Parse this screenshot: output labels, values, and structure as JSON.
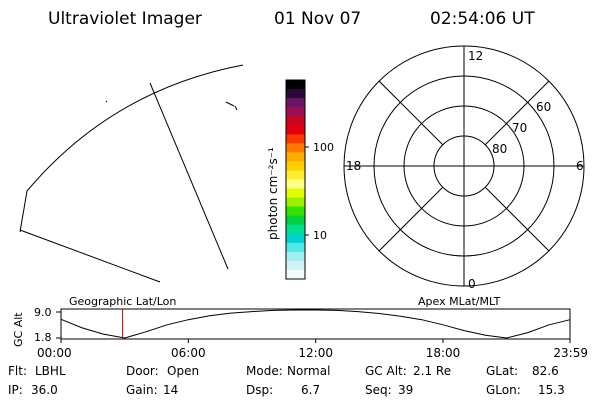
{
  "header": {
    "title": "Ultraviolet Imager",
    "date": "01 Nov 07",
    "time": "02:54:06 UT"
  },
  "colorbar": {
    "label": "photon cm⁻²s⁻¹",
    "scale": "log",
    "ticks": [
      "100",
      "10"
    ],
    "colors": [
      "#000000",
      "#2b0a3a",
      "#6a1568",
      "#9a1050",
      "#c80820",
      "#e40010",
      "#f83800",
      "#ff7800",
      "#ffac00",
      "#ffd000",
      "#ffee33",
      "#ffff88",
      "#ddff00",
      "#99f000",
      "#33e000",
      "#00d040",
      "#00e090",
      "#00d0d0",
      "#50e8e8",
      "#a0f0f0",
      "#d0f4f4",
      "#f4fafa"
    ]
  },
  "polar": {
    "mlt_labels": {
      "top": "12",
      "left": "18",
      "right": "6",
      "bottom": "0"
    },
    "lat_labels": [
      "60",
      "70",
      "80"
    ]
  },
  "alt_panel": {
    "ylabel": "GC Alt",
    "yticks": [
      "9.0",
      "1.8"
    ],
    "left_label": "Geographic Lat/Lon",
    "right_label": "Apex  MLat/MLT",
    "xticks": [
      "00:00",
      "06:00",
      "12:00",
      "18:00",
      "23:59"
    ]
  },
  "status": {
    "row1": [
      {
        "key": "Flt:",
        "value": "LBHL"
      },
      {
        "key": "Door:",
        "value": "Open"
      },
      {
        "key": "Mode:",
        "value": "Normal"
      },
      {
        "key": "GC Alt:",
        "value": "2.1 Re"
      },
      {
        "key": "GLat:",
        "value": "82.6"
      }
    ],
    "row2": [
      {
        "key": "IP:",
        "value": "36.0"
      },
      {
        "key": "Gain:",
        "value": "14"
      },
      {
        "key": "Dsp:",
        "value": "6.7"
      },
      {
        "key": "Seq:",
        "value": "39"
      },
      {
        "key": "GLon:",
        "value": "15.3"
      }
    ]
  },
  "chart_data": {
    "type": "line",
    "xlabel": "",
    "ylabel": "GC Alt",
    "x": [
      "00:00",
      "01:00",
      "02:00",
      "03:00",
      "04:00",
      "05:00",
      "06:00",
      "07:00",
      "08:00",
      "09:00",
      "10:00",
      "11:00",
      "12:00",
      "13:00",
      "14:00",
      "15:00",
      "16:00",
      "17:00",
      "18:00",
      "19:00",
      "20:00",
      "21:00",
      "22:00",
      "23:00",
      "23:59"
    ],
    "values": [
      6.6,
      4.4,
      2.8,
      1.8,
      3.4,
      5.2,
      6.5,
      7.5,
      8.2,
      8.6,
      8.9,
      9.0,
      9.0,
      8.9,
      8.6,
      8.1,
      7.4,
      6.5,
      5.2,
      3.7,
      2.5,
      1.8,
      3.2,
      5.2,
      6.5
    ],
    "ylim": [
      1.8,
      9.0
    ],
    "current_time": "02:54:06",
    "colors": {
      "line": "#000000",
      "marker": "#cc0000"
    }
  }
}
